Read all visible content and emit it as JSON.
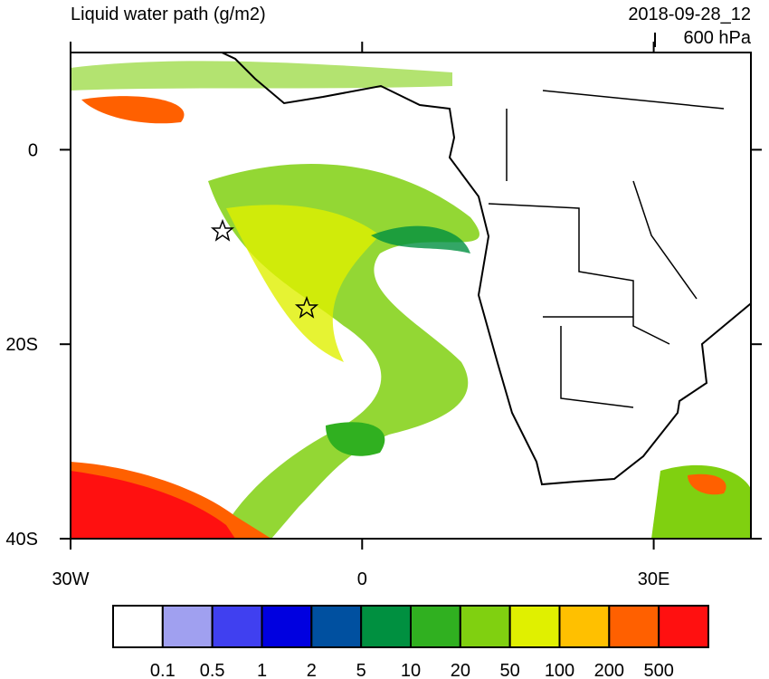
{
  "map": {
    "title": "Liquid water path (g/m2)",
    "valid_time": "2018-09-28_12",
    "level": "600 hPa",
    "xlim": [
      -30,
      40
    ],
    "ylim": [
      -40,
      10
    ],
    "xticks": [
      {
        "value": -30,
        "label": "30W"
      },
      0,
      {
        "value": 30,
        "label": "30E"
      }
    ],
    "yticks": [
      0,
      {
        "value": -20,
        "label": "20S"
      },
      {
        "value": -40,
        "label": "40S"
      }
    ]
  },
  "colorbar": {
    "colors": [
      "#ffffff",
      "#a0a0f0",
      "#4040f0",
      "#0000e0",
      "#0050a0",
      "#009040",
      "#30b020",
      "#80d010",
      "#e0f000",
      "#ffc000",
      "#ff6000",
      "#ff1010"
    ],
    "labels": [
      "0.1",
      "0.5",
      "1",
      "2",
      "5",
      "10",
      "20",
      "50",
      "100",
      "200",
      "500"
    ]
  }
}
